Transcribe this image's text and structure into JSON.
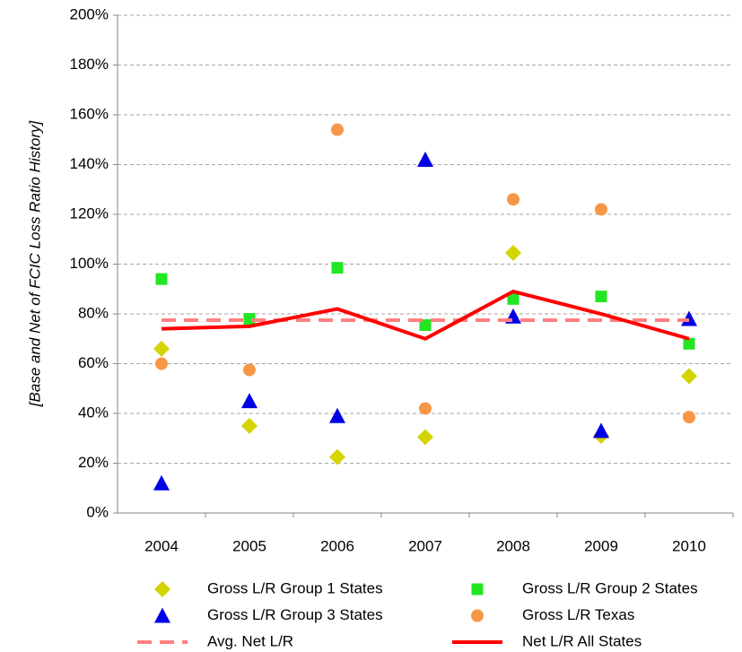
{
  "chart_data": {
    "type": "line",
    "y_label": "[Base and Net of FCIC Loss Ratio History]",
    "categories": [
      "2004",
      "2005",
      "2006",
      "2007",
      "2008",
      "2009",
      "2010"
    ],
    "ylim": [
      0,
      200
    ],
    "yticks": [
      {
        "value": 0,
        "label": "0%"
      },
      {
        "value": 20,
        "label": "20%"
      },
      {
        "value": 40,
        "label": "40%"
      },
      {
        "value": 60,
        "label": "60%"
      },
      {
        "value": 80,
        "label": "80%"
      },
      {
        "value": 100,
        "label": "100%"
      },
      {
        "value": 120,
        "label": "120%"
      },
      {
        "value": 140,
        "label": "140%"
      },
      {
        "value": 160,
        "label": "160%"
      },
      {
        "value": 180,
        "label": "180%"
      },
      {
        "value": 200,
        "label": "200%"
      }
    ],
    "grid": true,
    "legend": "bottom",
    "series": [
      {
        "name": "Gross L/R Group 1 States",
        "color": "#d4d400",
        "marker": "diamond",
        "values": [
          66,
          35,
          22.5,
          30.5,
          104.5,
          31,
          55
        ]
      },
      {
        "name": "Gross L/R Group 2 States",
        "color": "#22e622",
        "marker": "square",
        "values": [
          94,
          78,
          98.5,
          75.5,
          86,
          87,
          68
        ]
      },
      {
        "name": "Gross L/R Group 3 States",
        "color": "#0000e6",
        "marker": "triangle",
        "values": [
          12,
          45,
          39,
          142,
          79,
          33,
          78
        ]
      },
      {
        "name": "Gross L/R Texas",
        "color": "#f79646",
        "marker": "circle",
        "values": [
          60,
          57.5,
          154,
          42,
          126,
          122,
          38.5
        ]
      },
      {
        "name": "Avg. Net L/R",
        "color": "#ff8080",
        "marker": "dash",
        "values": [
          77.5,
          77.5,
          77.5,
          77.5,
          77.5,
          77.5,
          77.5
        ]
      },
      {
        "name": "Net L/R All States",
        "color": "#ff0000",
        "marker": "line",
        "values": [
          74,
          75,
          82,
          70,
          89,
          80,
          70
        ]
      }
    ]
  }
}
